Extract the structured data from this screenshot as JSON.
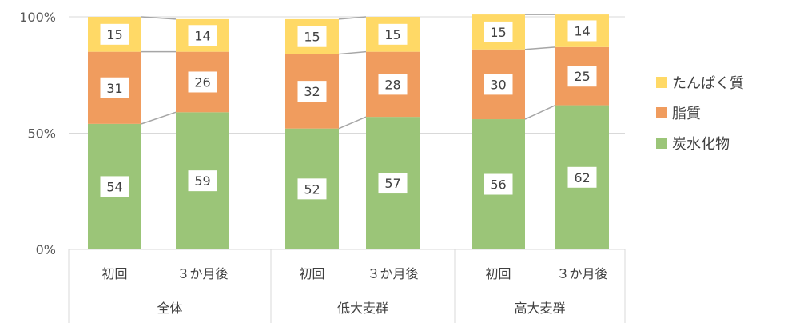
{
  "chart_data": {
    "type": "stacked-bar-100",
    "y_ticks": [
      "0%",
      "50%",
      "100%"
    ],
    "ylim": [
      0,
      100
    ],
    "grid": true,
    "legend_position": "right",
    "groups": [
      {
        "name": "全体",
        "categories": [
          "初回",
          "３か月後"
        ]
      },
      {
        "name": "低大麦群",
        "categories": [
          "初回",
          "３か月後"
        ]
      },
      {
        "name": "高大麦群",
        "categories": [
          "初回",
          "３か月後"
        ]
      }
    ],
    "series": [
      {
        "name": "炭水化物",
        "color": "#9BC578",
        "values": [
          54,
          59,
          52,
          57,
          56,
          62
        ]
      },
      {
        "name": "脂質",
        "color": "#F09C5E",
        "values": [
          31,
          26,
          32,
          28,
          30,
          25
        ]
      },
      {
        "name": "たんぱく質",
        "color": "#FFD966",
        "values": [
          15,
          14,
          15,
          15,
          15,
          14
        ]
      }
    ],
    "legend_order": [
      "たんぱく質",
      "脂質",
      "炭水化物"
    ]
  }
}
